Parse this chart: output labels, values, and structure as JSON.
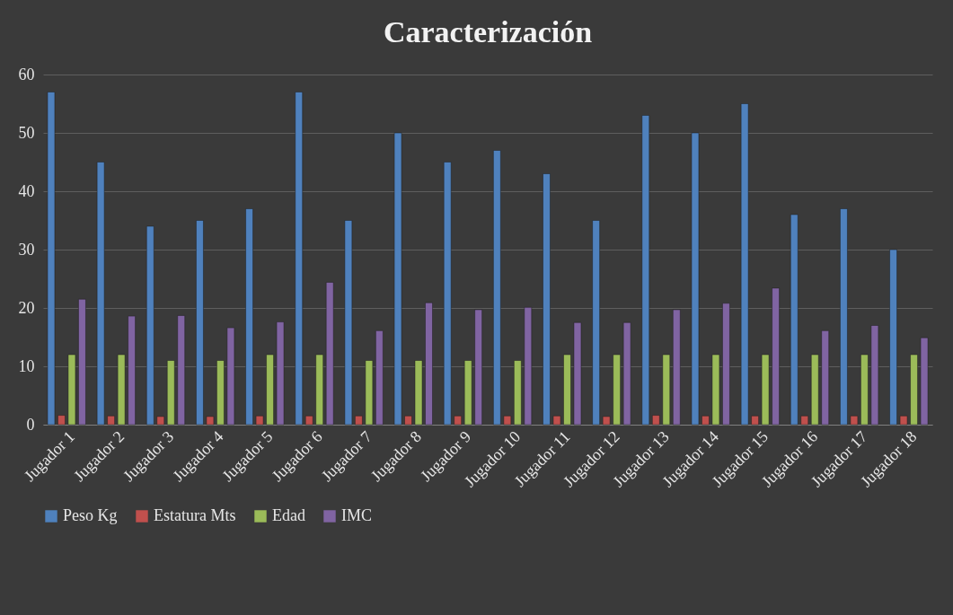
{
  "chart_data": {
    "type": "bar",
    "title": "Caracterización",
    "categories": [
      "Jugador 1",
      "Jugador 2",
      "Jugador 3",
      "Jugador 4",
      "Jugador 5",
      "Jugador 6",
      "Jugador 7",
      "Jugador 8",
      "Jugador 9",
      "Jugador 10",
      "Jugador 11",
      "Jugador 12",
      "Jugador 13",
      "Jugador 14",
      "Jugador 15",
      "Jugador 16",
      "Jugador 17",
      "Jugador 18"
    ],
    "series": [
      {
        "name": "Peso Kg",
        "color": "#4f81bd",
        "values": [
          57,
          45,
          34,
          35,
          37,
          57,
          35,
          50,
          45,
          47,
          43,
          35,
          53,
          50,
          55,
          36,
          37,
          30
        ]
      },
      {
        "name": "Estatura Mts",
        "color": "#c0504d",
        "values": [
          1.6,
          1.5,
          1.4,
          1.4,
          1.5,
          1.5,
          1.5,
          1.5,
          1.5,
          1.5,
          1.5,
          1.4,
          1.6,
          1.5,
          1.5,
          1.5,
          1.5,
          1.5
        ]
      },
      {
        "name": "Edad",
        "color": "#9bbb59",
        "values": [
          12,
          12,
          11,
          11,
          12,
          12,
          11,
          11,
          11,
          11,
          12,
          12,
          12,
          12,
          12,
          12,
          12,
          12
        ]
      },
      {
        "name": "IMC",
        "color": "#8064a2",
        "values": [
          21.5,
          18.6,
          18.7,
          16.6,
          17.6,
          24.4,
          16.1,
          20.9,
          19.7,
          20.1,
          17.5,
          17.5,
          19.7,
          20.8,
          23.4,
          16.1,
          17.0,
          14.9
        ]
      }
    ],
    "ylim": [
      0,
      60
    ],
    "yticks": [
      0,
      10,
      20,
      30,
      40,
      50,
      60
    ],
    "grid": "y",
    "legend": "bottom"
  }
}
